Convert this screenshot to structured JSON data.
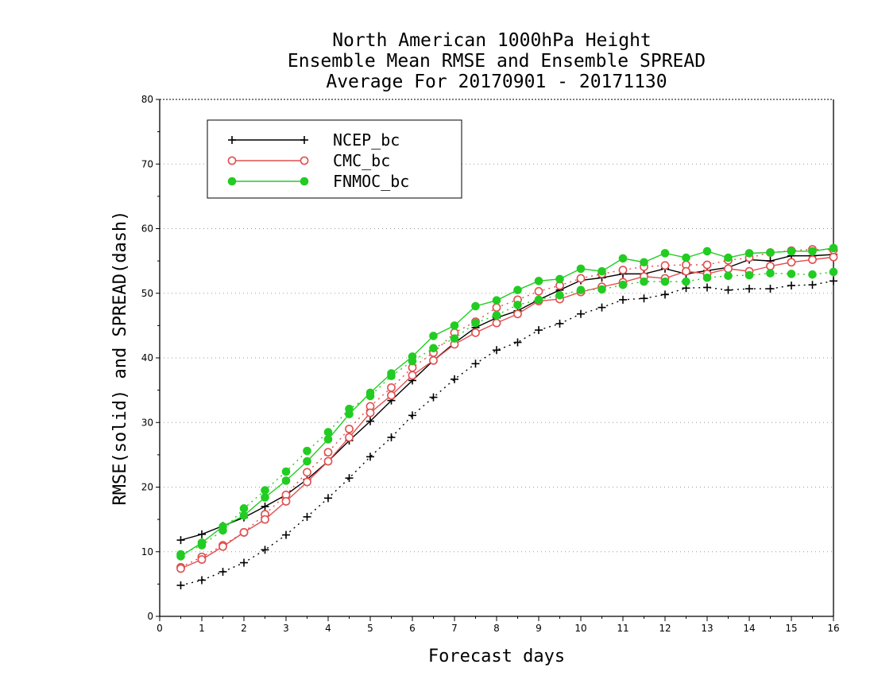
{
  "chart_data": {
    "type": "line",
    "title_lines": [
      "North American 1000hPa Height",
      "Ensemble Mean RMSE and Ensemble SPREAD",
      "Average For 20170901 - 20171130"
    ],
    "xlabel": "Forecast days",
    "ylabel": "RMSE(solid) and SPREAD(dash)",
    "xlim": [
      0,
      16
    ],
    "ylim": [
      0,
      80
    ],
    "xticks": [
      "0",
      "1",
      "2",
      "3",
      "4",
      "5",
      "6",
      "7",
      "8",
      "9",
      "10",
      "11",
      "12",
      "13",
      "14",
      "15",
      "16"
    ],
    "yticks": [
      "0",
      "10",
      "20",
      "30",
      "40",
      "50",
      "60",
      "70",
      "80"
    ],
    "grid": "horizontal dotted",
    "legend_position": "top-left",
    "x": [
      0.5,
      1,
      1.5,
      2,
      2.5,
      3,
      3.5,
      4,
      4.5,
      5,
      5.5,
      6,
      6.5,
      7,
      7.5,
      8,
      8.5,
      9,
      9.5,
      10,
      10.5,
      11,
      11.5,
      12,
      12.5,
      13,
      13.5,
      14,
      14.5,
      15,
      15.5,
      16
    ],
    "series": [
      {
        "name": "NCEP_bc",
        "color": "#000000",
        "marker": "plus",
        "rmse": [
          11.8,
          12.7,
          14.0,
          15.3,
          17.0,
          18.8,
          21.2,
          24.0,
          27.2,
          30.2,
          33.4,
          36.5,
          39.6,
          42.3,
          44.7,
          46.2,
          47.3,
          49.0,
          50.5,
          52.0,
          52.4,
          53.0,
          53.0,
          53.8,
          53.0,
          53.5,
          54.0,
          55.2,
          55.0,
          55.8,
          55.8,
          56.0
        ],
        "spread": [
          4.8,
          5.6,
          6.9,
          8.3,
          10.3,
          12.6,
          15.4,
          18.3,
          21.4,
          24.7,
          27.7,
          31.1,
          33.9,
          36.7,
          39.1,
          41.2,
          42.4,
          44.3,
          45.3,
          46.8,
          47.8,
          49.0,
          49.2,
          49.8,
          50.8,
          50.9,
          50.5,
          50.7,
          50.7,
          51.2,
          51.3,
          51.9
        ]
      },
      {
        "name": "CMC_bc",
        "color": "#e05050",
        "marker": "open-circle",
        "rmse": [
          7.4,
          8.8,
          10.8,
          13.0,
          15.0,
          17.8,
          20.8,
          24.0,
          27.7,
          31.5,
          34.2,
          37.3,
          39.6,
          42.1,
          43.9,
          45.4,
          46.8,
          48.8,
          49.1,
          50.2,
          51.0,
          51.7,
          52.6,
          52.3,
          53.4,
          53.0,
          53.8,
          53.4,
          54.2,
          54.8,
          55.2,
          55.6
        ],
        "spread": [
          7.6,
          9.2,
          11.0,
          13.0,
          15.8,
          18.8,
          22.3,
          25.4,
          29.0,
          32.5,
          35.4,
          38.5,
          40.8,
          43.9,
          45.6,
          47.8,
          49.0,
          50.3,
          51.2,
          52.3,
          53.0,
          53.6,
          54.1,
          54.3,
          54.4,
          54.4,
          55.1,
          55.5,
          56.3,
          56.6,
          56.8,
          56.7
        ]
      },
      {
        "name": "FNMOC_bc",
        "color": "#22cc22",
        "marker": "filled-circle",
        "rmse": [
          9.3,
          11.4,
          13.9,
          15.6,
          18.4,
          21.0,
          24.0,
          27.4,
          31.3,
          34.6,
          37.6,
          40.2,
          43.4,
          45.0,
          48.0,
          48.9,
          50.5,
          51.9,
          52.2,
          53.8,
          53.4,
          55.4,
          54.8,
          56.2,
          55.5,
          56.5,
          55.5,
          56.2,
          56.3,
          56.5,
          56.5,
          57.0
        ],
        "spread": [
          9.6,
          11.0,
          13.3,
          16.7,
          19.5,
          22.4,
          25.6,
          28.5,
          32.1,
          34.1,
          37.2,
          39.5,
          41.5,
          43.0,
          45.4,
          46.6,
          48.2,
          49.0,
          49.7,
          50.5,
          50.6,
          51.3,
          51.8,
          51.8,
          51.8,
          52.4,
          52.7,
          52.8,
          53.1,
          53.0,
          52.9,
          53.3
        ]
      }
    ]
  }
}
